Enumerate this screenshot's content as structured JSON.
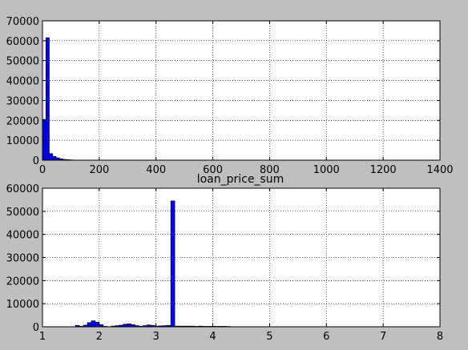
{
  "chart_data": [
    {
      "type": "bar",
      "title": "",
      "xlabel": "",
      "ylabel": "",
      "xlim": [
        0,
        1400
      ],
      "ylim": [
        0,
        70000
      ],
      "grid": true,
      "bar_color": "#0000ff",
      "xticks": [
        0,
        200,
        400,
        600,
        800,
        1000,
        1200,
        1400
      ],
      "xtick_labels": [
        "0",
        "200",
        "400",
        "600",
        "800",
        "1000",
        "1200",
        "1400"
      ],
      "yticks": [
        0,
        10000,
        20000,
        30000,
        40000,
        50000,
        60000,
        70000
      ],
      "ytick_labels": [
        "0",
        "10000",
        "20000",
        "30000",
        "40000",
        "50000",
        "60000",
        "70000"
      ],
      "bin_edges": [
        0,
        12,
        24,
        36,
        48,
        60,
        72,
        84,
        96,
        108,
        120
      ],
      "values": [
        20500,
        61500,
        3300,
        1900,
        1200,
        700,
        400,
        250,
        150,
        80
      ]
    },
    {
      "type": "bar",
      "title": "loan_price_sum",
      "xlabel": "",
      "ylabel": "",
      "xlim": [
        1,
        8
      ],
      "ylim": [
        0,
        60000
      ],
      "grid": true,
      "bar_color": "#0000ff",
      "xticks": [
        1,
        2,
        3,
        4,
        5,
        6,
        7,
        8
      ],
      "xtick_labels": [
        "1",
        "2",
        "3",
        "4",
        "5",
        "6",
        "7",
        "8"
      ],
      "yticks": [
        0,
        10000,
        20000,
        30000,
        40000,
        50000,
        60000
      ],
      "ytick_labels": [
        "0",
        "10000",
        "20000",
        "30000",
        "40000",
        "50000",
        "60000"
      ],
      "bin_edges": [
        1.58,
        1.65,
        1.72,
        1.79,
        1.86,
        1.93,
        2.0,
        2.07,
        2.14,
        2.21,
        2.28,
        2.35,
        2.42,
        2.49,
        2.56,
        2.63,
        2.7,
        2.77,
        2.84,
        2.91,
        2.98,
        3.05,
        3.12,
        3.19,
        3.26,
        3.33,
        3.4,
        3.47,
        3.54,
        3.61,
        3.68,
        3.75,
        3.82,
        3.89,
        3.96,
        4.03,
        4.1,
        4.17,
        4.24,
        4.31
      ],
      "values": [
        600,
        200,
        700,
        1800,
        2600,
        2000,
        900,
        200,
        0,
        300,
        500,
        700,
        1100,
        1300,
        900,
        500,
        300,
        500,
        800,
        600,
        300,
        400,
        500,
        600,
        54500,
        300,
        300,
        300,
        300,
        300,
        200,
        300,
        200,
        200,
        200,
        200,
        200,
        200,
        150
      ]
    }
  ]
}
